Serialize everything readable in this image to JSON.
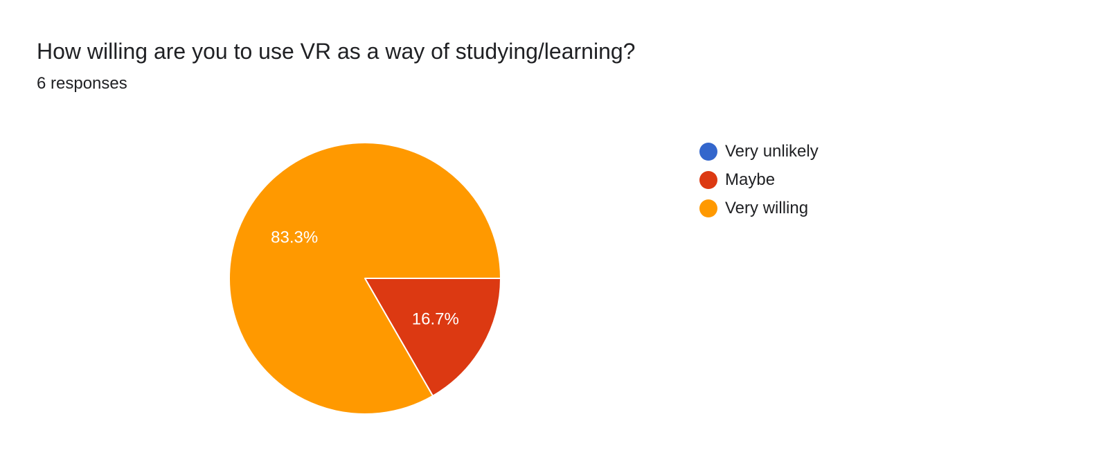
{
  "question": {
    "title": "How willing are you to use VR as a way of studying/learning?",
    "responses_text": "6 responses"
  },
  "chart_data": {
    "type": "pie",
    "title": "How willing are you to use VR as a way of studying/learning?",
    "legend_position": "right",
    "slices": [
      {
        "label": "Very unlikely",
        "value": 0,
        "percent_label": "",
        "color": "#3366cc"
      },
      {
        "label": "Maybe",
        "value": 1,
        "percent_label": "16.7%",
        "color": "#dc3912"
      },
      {
        "label": "Very willing",
        "value": 5,
        "percent_label": "83.3%",
        "color": "#ff9900"
      }
    ]
  }
}
